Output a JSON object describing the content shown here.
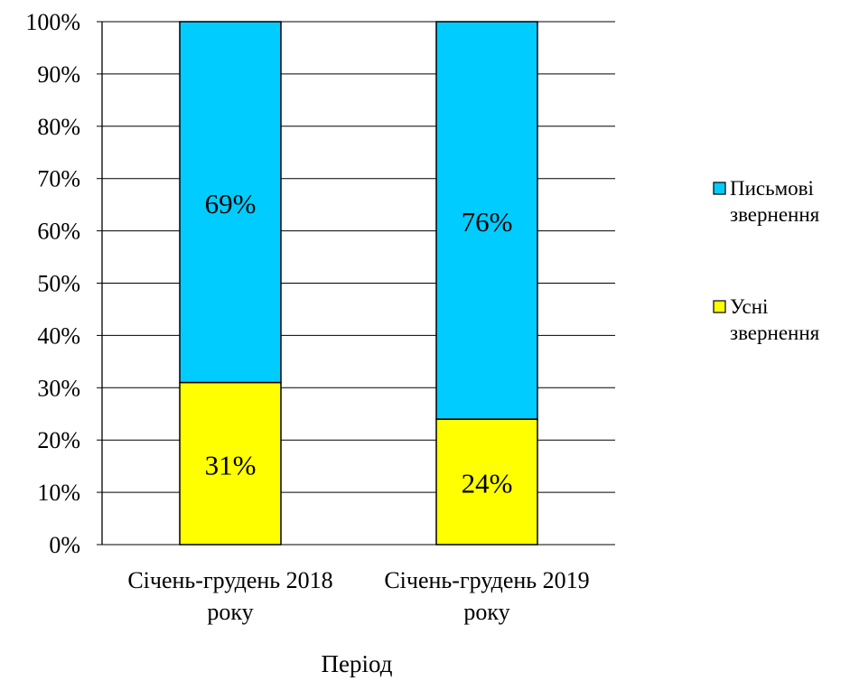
{
  "chart_data": {
    "type": "bar",
    "stacked": true,
    "percent_stacked": true,
    "categories": [
      [
        "Січень-грудень  2018",
        "року"
      ],
      [
        "Січень-грудень  2019",
        "року"
      ]
    ],
    "series": [
      {
        "name": "Усні звернення",
        "values": [
          31,
          24
        ],
        "labels": [
          "31%",
          "24%"
        ],
        "color": "#ffff00"
      },
      {
        "name": "Письмові звернення",
        "values": [
          69,
          76
        ],
        "labels": [
          "69%",
          "76%"
        ],
        "color": "#00ccff"
      }
    ],
    "legend": [
      {
        "lines": [
          "Письмові",
          "звернення"
        ],
        "color": "#00ccff"
      },
      {
        "lines": [
          "Усні",
          "звернення"
        ],
        "color": "#ffff00"
      }
    ],
    "legend_position": "right",
    "ylim": [
      0,
      100
    ],
    "yticks": [
      "0%",
      "10%",
      "20%",
      "30%",
      "40%",
      "50%",
      "60%",
      "70%",
      "80%",
      "90%",
      "100%"
    ],
    "xlabel": "Період",
    "ylabel": "",
    "grid": true
  }
}
